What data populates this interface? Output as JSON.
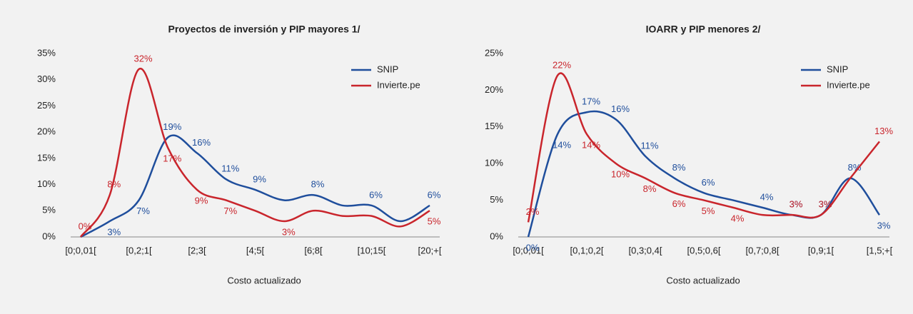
{
  "chart_data": [
    {
      "type": "line",
      "title": "Proyectos de inversión y PIP mayores 1/",
      "x_label": "Costo actualizado",
      "categories": [
        "[0;0,01[",
        null,
        "[0,2;1[",
        null,
        "[2;3[",
        null,
        "[4;5[",
        null,
        "[6;8[",
        null,
        "[10;15[",
        null,
        "[20;+["
      ],
      "series": [
        {
          "name": "SNIP",
          "color": "#1f4e9c",
          "values": [
            0,
            3,
            7,
            19,
            16,
            11,
            9,
            7,
            8,
            6,
            6,
            3,
            6
          ],
          "value_labels": [
            null,
            "3%",
            "7%",
            "19%",
            "16%",
            "11%",
            "9%",
            null,
            "8%",
            null,
            "6%",
            null,
            "6%"
          ]
        },
        {
          "name": "Invierte.pe",
          "color": "#c9252c",
          "values": [
            0,
            8,
            32,
            17,
            9,
            7,
            5,
            3,
            5,
            4,
            4,
            2,
            5
          ],
          "value_labels": [
            "0%",
            "8%",
            "32%",
            "17%",
            "9%",
            "7%",
            null,
            "3%",
            null,
            null,
            null,
            null,
            "5%"
          ]
        }
      ],
      "ylim": [
        0,
        35
      ],
      "yticks": [
        {
          "value": 0,
          "label": "0%"
        },
        {
          "value": 5,
          "label": "5%"
        },
        {
          "value": 10,
          "label": "10%"
        },
        {
          "value": 15,
          "label": "15%"
        },
        {
          "value": 20,
          "label": "20%"
        },
        {
          "value": 25,
          "label": "25%"
        },
        {
          "value": 30,
          "label": "30%"
        },
        {
          "value": 35,
          "label": "35%"
        }
      ],
      "legend": "upper right"
    },
    {
      "type": "line",
      "title": "IOARR y PIP menores 2/",
      "x_label": "Costo actualizado",
      "categories": [
        "[0;0,01[",
        null,
        "[0,1;0,2[",
        null,
        "[0,3;0,4[",
        null,
        "[0,5;0,6[",
        null,
        "[0,7;0,8[",
        null,
        "[0,9;1[",
        null,
        "[1,5;+["
      ],
      "series": [
        {
          "name": "SNIP",
          "color": "#1f4e9c",
          "values": [
            0,
            14,
            17,
            16,
            11,
            8,
            6,
            5,
            4,
            3,
            3,
            8,
            3
          ],
          "value_labels": [
            "0%",
            "14%",
            "17%",
            "16%",
            "11%",
            "8%",
            "6%",
            null,
            "4%",
            "3%",
            "3%",
            "8%",
            "3%"
          ]
        },
        {
          "name": "Invierte.pe",
          "color": "#c9252c",
          "values": [
            2,
            22,
            14,
            10,
            8,
            6,
            5,
            4,
            3,
            3,
            3,
            8,
            13
          ],
          "value_labels": [
            "2%",
            "22%",
            "14%",
            "10%",
            "8%",
            "6%",
            "5%",
            "4%",
            null,
            "3%",
            "3%",
            null,
            "13%"
          ]
        }
      ],
      "ylim": [
        0,
        25
      ],
      "yticks": [
        {
          "value": 0,
          "label": "0%"
        },
        {
          "value": 5,
          "label": "5%"
        },
        {
          "value": 10,
          "label": "10%"
        },
        {
          "value": 15,
          "label": "15%"
        },
        {
          "value": 20,
          "label": "20%"
        },
        {
          "value": 25,
          "label": "25%"
        }
      ],
      "legend": "upper right"
    }
  ]
}
